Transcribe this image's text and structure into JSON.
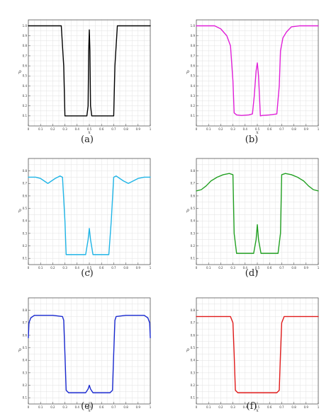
{
  "chart_data": [
    {
      "type": "line",
      "caption": "(a)",
      "xlabel": "x",
      "ylabel": "ρ",
      "xlim": [
        0,
        1
      ],
      "ylim": [
        0,
        1.06
      ],
      "x_ticks": [
        0,
        0.1,
        0.2,
        0.3,
        0.4,
        0.5,
        0.6,
        0.7,
        0.8,
        0.9,
        1
      ],
      "x_tick_labels": [
        "0",
        "0.1",
        "0.2",
        "0.3",
        "0.4",
        "0.5",
        "0.6",
        "0.7",
        "0.8",
        "0.9",
        "1"
      ],
      "y_ticks": [
        0.1,
        0.2,
        0.3,
        0.4,
        0.5,
        0.6,
        0.7,
        0.8,
        0.9,
        1
      ],
      "y_tick_labels": [
        "0.1",
        "0.2",
        "0.3",
        "0.4",
        "0.5",
        "0.6",
        "0.7",
        "0.8",
        "0.9",
        "1.0"
      ],
      "grid": true,
      "series": [
        {
          "color": "#000000",
          "x": [
            0,
            0.27,
            0.29,
            0.3,
            0.32,
            0.48,
            0.49,
            0.495,
            0.5,
            0.505,
            0.51,
            0.52,
            0.68,
            0.7,
            0.71,
            0.73,
            1
          ],
          "y": [
            1,
            1,
            0.6,
            0.1,
            0.1,
            0.1,
            0.2,
            0.75,
            0.96,
            0.75,
            0.2,
            0.1,
            0.1,
            0.1,
            0.6,
            1,
            1
          ]
        }
      ]
    },
    {
      "type": "line",
      "caption": "(b)",
      "xlabel": "x",
      "ylabel": "ρ",
      "xlim": [
        0,
        1
      ],
      "ylim": [
        0,
        1.06
      ],
      "x_ticks": [
        0,
        0.1,
        0.2,
        0.3,
        0.4,
        0.5,
        0.6,
        0.7,
        0.8,
        0.9,
        1
      ],
      "x_tick_labels": [
        "0",
        "0.1",
        "0.2",
        "0.3",
        "0.4",
        "0.5",
        "0.6",
        "0.7",
        "0.8",
        "0.9",
        "1"
      ],
      "y_ticks": [
        0.1,
        0.2,
        0.3,
        0.4,
        0.5,
        0.6,
        0.7,
        0.8,
        0.9,
        1
      ],
      "y_tick_labels": [
        "0.1",
        "0.2",
        "0.3",
        "0.4",
        "0.5",
        "0.6",
        "0.7",
        "0.8",
        "0.9",
        "1.0"
      ],
      "grid": true,
      "series": [
        {
          "color": "#e020d8",
          "x": [
            0,
            0.15,
            0.2,
            0.25,
            0.28,
            0.3,
            0.31,
            0.33,
            0.37,
            0.43,
            0.46,
            0.475,
            0.49,
            0.5,
            0.51,
            0.525,
            0.54,
            0.6,
            0.66,
            0.68,
            0.69,
            0.71,
            0.74,
            0.78,
            0.85,
            1
          ],
          "y": [
            1,
            1,
            0.97,
            0.9,
            0.8,
            0.45,
            0.13,
            0.11,
            0.105,
            0.11,
            0.12,
            0.3,
            0.55,
            0.63,
            0.5,
            0.1,
            0.105,
            0.11,
            0.12,
            0.4,
            0.75,
            0.88,
            0.94,
            0.99,
            1,
            1
          ]
        }
      ]
    },
    {
      "type": "line",
      "caption": "(c)",
      "xlabel": "x",
      "ylabel": "ρ",
      "xlim": [
        0,
        1
      ],
      "ylim": [
        0.05,
        0.9
      ],
      "x_ticks": [
        0,
        0.1,
        0.2,
        0.3,
        0.4,
        0.5,
        0.6,
        0.7,
        0.8,
        0.9,
        1
      ],
      "x_tick_labels": [
        "0",
        "0.1",
        "0.2",
        "0.3",
        "0.4",
        "0.5",
        "0.6",
        "0.7",
        "0.8",
        "0.9",
        "1"
      ],
      "y_ticks": [
        0.1,
        0.2,
        0.3,
        0.4,
        0.5,
        0.6,
        0.7,
        0.8
      ],
      "y_tick_labels": [
        "0.1",
        "0.2",
        "0.3",
        "0.4",
        "0.5",
        "0.6",
        "0.7",
        "0.8"
      ],
      "grid": true,
      "series": [
        {
          "color": "#1eb4e6",
          "x": [
            0,
            0.06,
            0.1,
            0.13,
            0.16,
            0.19,
            0.22,
            0.26,
            0.28,
            0.3,
            0.31,
            0.33,
            0.4,
            0.47,
            0.49,
            0.5,
            0.51,
            0.53,
            0.6,
            0.66,
            0.68,
            0.7,
            0.72,
            0.75,
            0.78,
            0.82,
            0.86,
            0.9,
            0.95,
            1
          ],
          "y": [
            0.75,
            0.75,
            0.74,
            0.72,
            0.7,
            0.72,
            0.74,
            0.76,
            0.75,
            0.4,
            0.13,
            0.13,
            0.13,
            0.13,
            0.25,
            0.34,
            0.25,
            0.13,
            0.13,
            0.13,
            0.4,
            0.75,
            0.76,
            0.74,
            0.72,
            0.7,
            0.72,
            0.74,
            0.75,
            0.75
          ]
        }
      ]
    },
    {
      "type": "line",
      "caption": "(d)",
      "xlabel": "x",
      "ylabel": "ρ",
      "xlim": [
        0,
        1
      ],
      "ylim": [
        0.05,
        0.9
      ],
      "x_ticks": [
        0,
        0.1,
        0.2,
        0.3,
        0.4,
        0.5,
        0.6,
        0.7,
        0.8,
        0.9,
        1
      ],
      "x_tick_labels": [
        "0",
        "0.1",
        "0.2",
        "0.3",
        "0.4",
        "0.5",
        "0.6",
        "0.7",
        "0.8",
        "0.9",
        "1"
      ],
      "y_ticks": [
        0.1,
        0.2,
        0.3,
        0.4,
        0.5,
        0.6,
        0.7,
        0.8
      ],
      "y_tick_labels": [
        "0.1",
        "0.2",
        "0.3",
        "0.4",
        "0.5",
        "0.6",
        "0.7",
        "0.8"
      ],
      "grid": true,
      "series": [
        {
          "color": "#22a022",
          "x": [
            0,
            0.04,
            0.08,
            0.12,
            0.17,
            0.22,
            0.27,
            0.3,
            0.31,
            0.33,
            0.4,
            0.47,
            0.49,
            0.5,
            0.51,
            0.53,
            0.6,
            0.67,
            0.69,
            0.7,
            0.73,
            0.78,
            0.83,
            0.88,
            0.92,
            0.96,
            1
          ],
          "y": [
            0.64,
            0.65,
            0.68,
            0.72,
            0.75,
            0.77,
            0.78,
            0.77,
            0.3,
            0.14,
            0.14,
            0.14,
            0.25,
            0.37,
            0.25,
            0.14,
            0.14,
            0.14,
            0.3,
            0.77,
            0.78,
            0.77,
            0.75,
            0.72,
            0.68,
            0.65,
            0.64
          ]
        }
      ]
    },
    {
      "type": "line",
      "caption": "(e)",
      "xlabel": "x",
      "ylabel": "ρ",
      "xlim": [
        0,
        1
      ],
      "ylim": [
        0.05,
        0.9
      ],
      "x_ticks": [
        0,
        0.1,
        0.2,
        0.3,
        0.4,
        0.5,
        0.6,
        0.7,
        0.8,
        0.9,
        1
      ],
      "x_tick_labels": [
        "0",
        "0.1",
        "0.2",
        "0.3",
        "0.4",
        "0.5",
        "0.6",
        "0.7",
        "0.8",
        "0.9",
        "1"
      ],
      "y_ticks": [
        0.1,
        0.2,
        0.3,
        0.4,
        0.5,
        0.6,
        0.7,
        0.8
      ],
      "y_tick_labels": [
        "0.1",
        "0.2",
        "0.3",
        "0.4",
        "0.5",
        "0.6",
        "0.7",
        "0.8"
      ],
      "grid": true,
      "series": [
        {
          "color": "#1a2ad0",
          "x": [
            0,
            0.005,
            0.02,
            0.05,
            0.1,
            0.2,
            0.28,
            0.29,
            0.3,
            0.31,
            0.33,
            0.4,
            0.47,
            0.49,
            0.5,
            0.51,
            0.53,
            0.6,
            0.67,
            0.69,
            0.7,
            0.71,
            0.72,
            0.8,
            0.9,
            0.95,
            0.98,
            0.995,
            1
          ],
          "y": [
            0.58,
            0.7,
            0.74,
            0.76,
            0.76,
            0.76,
            0.75,
            0.72,
            0.45,
            0.16,
            0.14,
            0.14,
            0.14,
            0.17,
            0.2,
            0.17,
            0.14,
            0.14,
            0.14,
            0.16,
            0.45,
            0.72,
            0.75,
            0.76,
            0.76,
            0.76,
            0.74,
            0.7,
            0.58
          ]
        }
      ]
    },
    {
      "type": "line",
      "caption": "(f)",
      "xlabel": "x",
      "ylabel": "ρ",
      "xlim": [
        0,
        1
      ],
      "ylim": [
        0.05,
        0.9
      ],
      "x_ticks": [
        0,
        0.1,
        0.2,
        0.3,
        0.4,
        0.5,
        0.6,
        0.7,
        0.8,
        0.9,
        1
      ],
      "x_tick_labels": [
        "0",
        "0.1",
        "0.2",
        "0.3",
        "0.4",
        "0.5",
        "0.6",
        "0.7",
        "0.8",
        "0.9",
        "1"
      ],
      "y_ticks": [
        0.1,
        0.2,
        0.3,
        0.4,
        0.5,
        0.6,
        0.7,
        0.8
      ],
      "y_tick_labels": [
        "0.1",
        "0.2",
        "0.3",
        "0.4",
        "0.5",
        "0.6",
        "0.7",
        "0.8"
      ],
      "grid": true,
      "series": [
        {
          "color": "#e01a1a",
          "x": [
            0,
            0.28,
            0.3,
            0.31,
            0.32,
            0.34,
            0.5,
            0.66,
            0.68,
            0.69,
            0.7,
            0.72,
            1
          ],
          "y": [
            0.75,
            0.75,
            0.7,
            0.45,
            0.16,
            0.14,
            0.14,
            0.14,
            0.16,
            0.45,
            0.7,
            0.75,
            0.75
          ]
        }
      ]
    }
  ]
}
